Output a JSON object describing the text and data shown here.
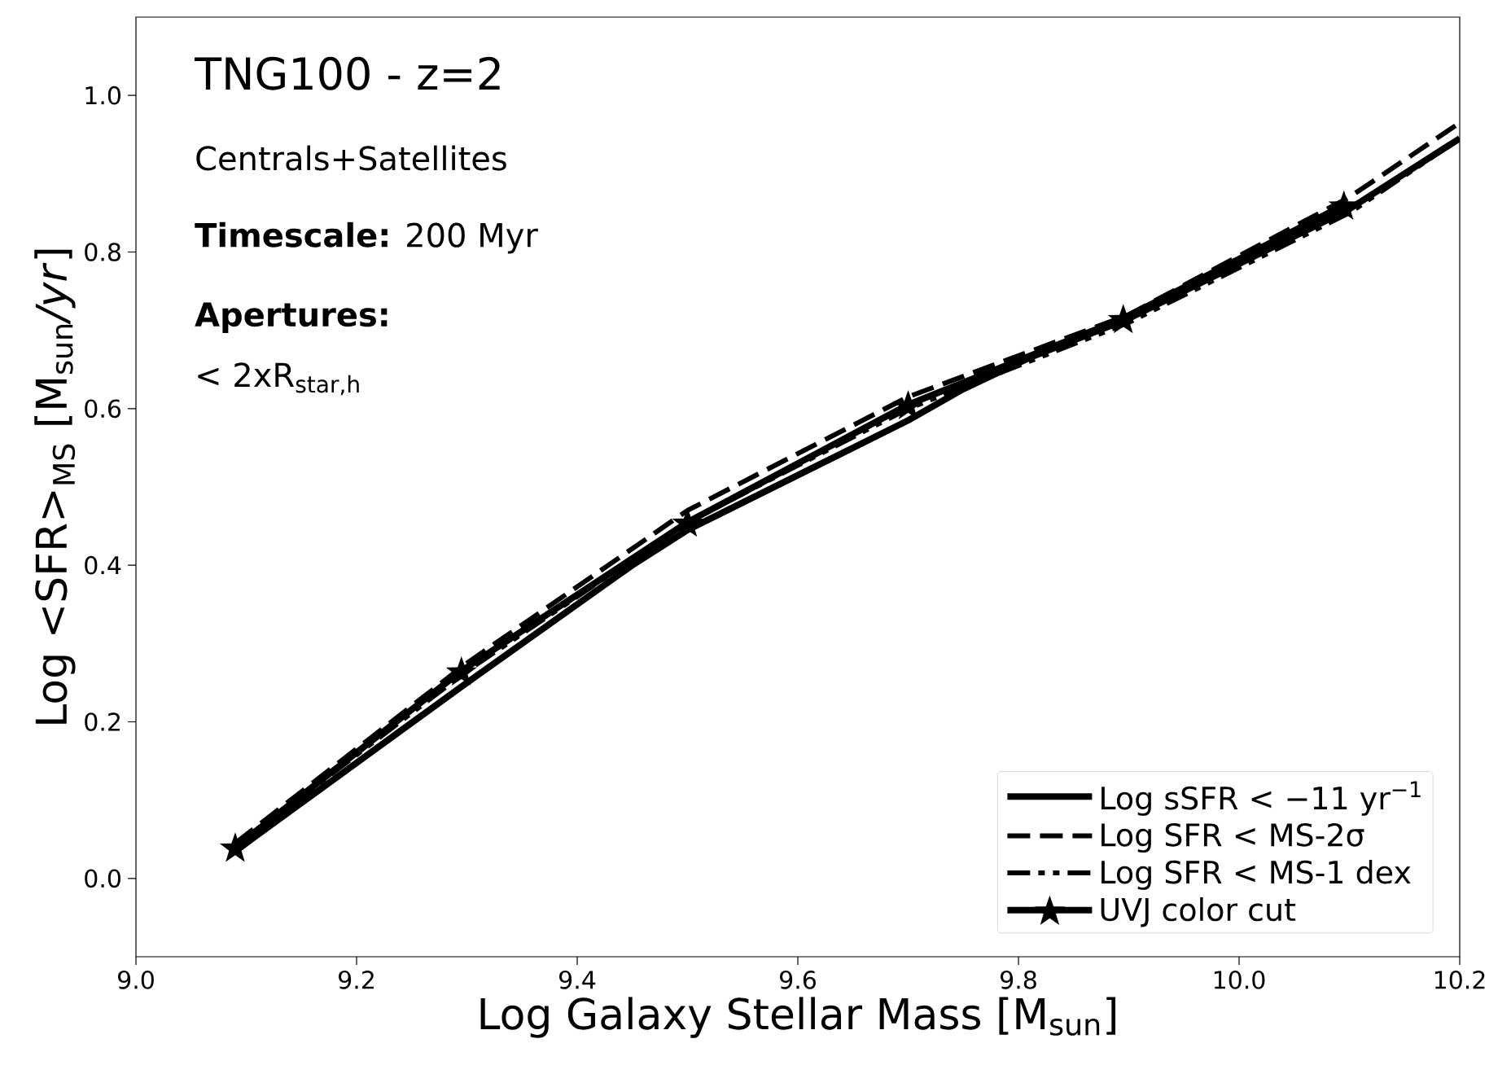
{
  "chart_data": {
    "type": "line",
    "title": "TNG100 - z=2",
    "xlabel": "Log Galaxy Stellar Mass [M$_{sun}$]",
    "ylabel": "Log <SFR>$_{MS}$ [M$_{sun}$*/yr*]",
    "annotations": [
      "Centrals+Satellites",
      "**Timescale:** 200 Myr",
      "**Apertures:**",
      "< 2xR$_{star,h}$"
    ],
    "xlim": [
      9.0,
      10.2
    ],
    "ylim": [
      -0.1,
      1.1
    ],
    "xticks": [
      {
        "value": 9.0,
        "label": "9.0"
      },
      {
        "value": 9.2,
        "label": "9.2"
      },
      {
        "value": 9.4,
        "label": "9.4"
      },
      {
        "value": 9.6,
        "label": "9.6"
      },
      {
        "value": 9.8,
        "label": "9.8"
      },
      {
        "value": 10.0,
        "label": "10.0"
      },
      {
        "value": 10.2,
        "label": "10.2"
      }
    ],
    "yticks": [
      {
        "value": 0.0,
        "label": "0.0"
      },
      {
        "value": 0.2,
        "label": "0.2"
      },
      {
        "value": 0.4,
        "label": "0.4"
      },
      {
        "value": 0.6,
        "label": "0.6"
      },
      {
        "value": 0.8,
        "label": "0.8"
      },
      {
        "value": 1.0,
        "label": "1.0"
      }
    ],
    "legend": "bottom right",
    "grid": false,
    "series": [
      {
        "name": "Log sSFR  < −11 yr$^{−1}$",
        "color": "#000000",
        "line_style": "solid",
        "x": [
          9.09,
          9.3,
          9.45,
          9.5,
          9.7,
          9.75,
          9.81,
          9.9,
          10.1,
          10.2
        ],
        "values": [
          0.035,
          0.25,
          0.4,
          0.445,
          0.585,
          0.625,
          0.665,
          0.715,
          0.855,
          0.945
        ]
      },
      {
        "name": "Log SFR < MS-2σ",
        "color": "#000000",
        "line_style": "dashed",
        "x": [
          9.09,
          9.3,
          9.5,
          9.7,
          9.9,
          10.1,
          10.2
        ],
        "values": [
          0.045,
          0.275,
          0.47,
          0.615,
          0.72,
          0.87,
          0.965
        ]
      },
      {
        "name": "Log SFR < MS-1 dex",
        "color": "#000000",
        "line_style": "dashdot",
        "x": [
          9.09,
          9.3,
          9.5,
          9.7,
          9.9,
          10.1,
          10.2
        ],
        "values": [
          0.04,
          0.265,
          0.455,
          0.6,
          0.71,
          0.85,
          0.945
        ]
      },
      {
        "name": "UVJ color cut",
        "color": "#000000",
        "line_style": "solid",
        "marker": "star",
        "x": [
          9.09,
          9.295,
          9.5,
          9.7,
          9.895,
          10.095
        ],
        "values": [
          0.04,
          0.265,
          0.455,
          0.605,
          0.715,
          0.86
        ]
      }
    ]
  }
}
